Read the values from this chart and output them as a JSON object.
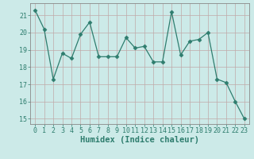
{
  "x": [
    0,
    1,
    2,
    3,
    4,
    5,
    6,
    7,
    8,
    9,
    10,
    11,
    12,
    13,
    14,
    15,
    16,
    17,
    18,
    19,
    20,
    21,
    22,
    23
  ],
  "y": [
    21.3,
    20.2,
    17.3,
    18.8,
    18.5,
    19.9,
    20.6,
    18.6,
    18.6,
    18.6,
    19.7,
    19.1,
    19.2,
    18.3,
    18.3,
    21.2,
    18.7,
    19.5,
    19.6,
    20.0,
    17.3,
    17.1,
    16.0,
    15.0
  ],
  "line_color": "#2e7d6e",
  "marker": "D",
  "marker_size": 2.5,
  "bg_color": "#cceae8",
  "grid_color": "#c0a8a8",
  "xlabel": "Humidex (Indice chaleur)",
  "ylim_min": 14.7,
  "ylim_max": 21.7,
  "xlim_min": -0.5,
  "xlim_max": 23.5,
  "yticks": [
    15,
    16,
    17,
    18,
    19,
    20,
    21
  ],
  "xticks": [
    0,
    1,
    2,
    3,
    4,
    5,
    6,
    7,
    8,
    9,
    10,
    11,
    12,
    13,
    14,
    15,
    16,
    17,
    18,
    19,
    20,
    21,
    22,
    23
  ],
  "tick_fontsize": 6,
  "xlabel_fontsize": 7.5,
  "xlabel_fontweight": "bold"
}
